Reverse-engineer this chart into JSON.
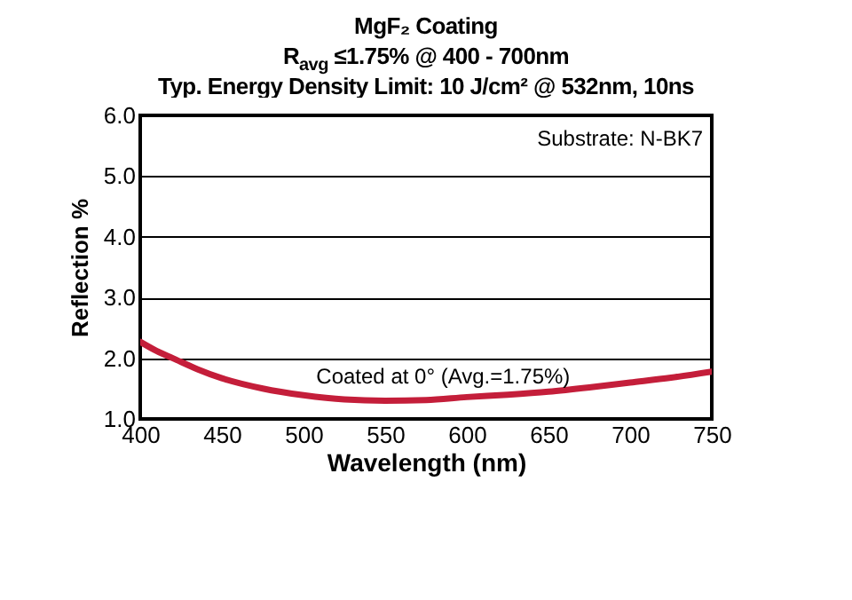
{
  "chart_data": {
    "type": "line",
    "title": "MgF₂ Coating",
    "subtitle": "R$_{avg}$ ≤1.75% @ 400 - 700nm",
    "annotations": [
      "Typ. Energy Density Limit: 10 J/cm² @ 532nm, 10ns",
      "Substrate: N-BK7",
      "Coated at 0°  (Avg.=1.75%)"
    ],
    "xlabel": "Wavelength (nm)",
    "ylabel": "Reflection %",
    "x": [
      400,
      410,
      420,
      435,
      450,
      475,
      500,
      525,
      550,
      575,
      600,
      625,
      650,
      675,
      700,
      725,
      750
    ],
    "series": [
      {
        "color": "#c41e3a",
        "values": [
          2.27,
          2.12,
          2.0,
          1.82,
          1.67,
          1.5,
          1.39,
          1.32,
          1.3,
          1.31,
          1.36,
          1.4,
          1.45,
          1.52,
          1.6,
          1.68,
          1.78
        ]
      }
    ],
    "xlim": [
      400,
      750
    ],
    "xticks": [
      400,
      450,
      500,
      550,
      600,
      650,
      700,
      750
    ],
    "ylim": [
      1.0,
      6.0
    ],
    "yticks": [
      {
        "value": 1,
        "label": "1.0"
      },
      {
        "value": 2,
        "label": "2.0"
      },
      {
        "value": 3,
        "label": "3.0"
      },
      {
        "value": 4,
        "label": "4.0"
      },
      {
        "value": 5,
        "label": "5.0"
      },
      {
        "value": 6,
        "label": "6.0"
      }
    ],
    "grid": "y",
    "marker": "none",
    "line_style": "solid"
  }
}
